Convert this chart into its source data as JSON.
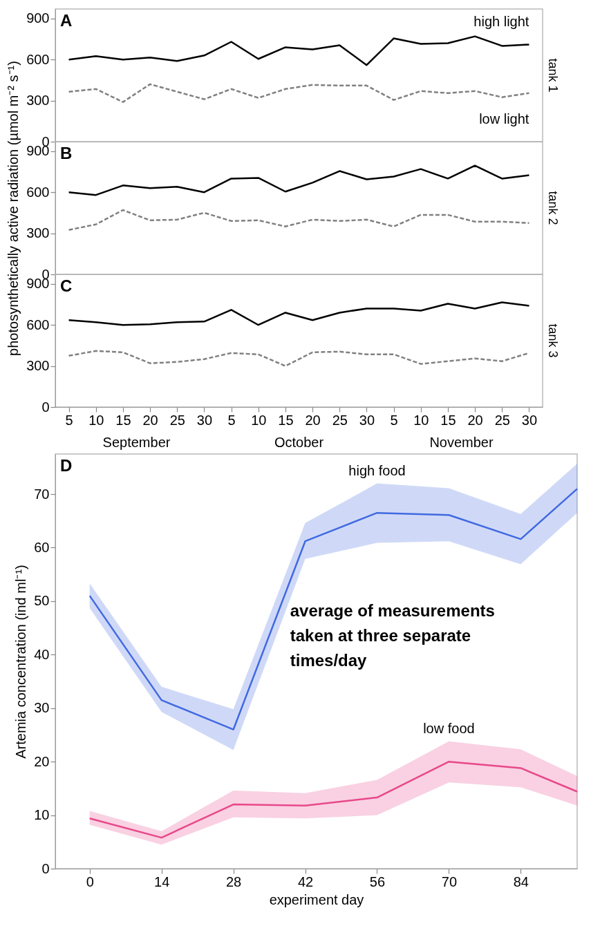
{
  "chart_data": [
    {
      "type": "line",
      "title": "A",
      "categories": [
        "5",
        "10",
        "15",
        "20",
        "25",
        "30",
        "5",
        "10",
        "15",
        "20",
        "25",
        "30",
        "5",
        "10",
        "15",
        "20",
        "25",
        "30"
      ],
      "ylim": [
        0,
        970
      ],
      "yticks": [
        0,
        300,
        600,
        900
      ],
      "tick_labels": "y",
      "annotations": [
        "tank 1"
      ],
      "series": [
        {
          "name": "high light",
          "color": "#000000",
          "line_style": "solid",
          "values": [
            600,
            625,
            600,
            615,
            590,
            630,
            730,
            605,
            690,
            675,
            705,
            560,
            755,
            715,
            720,
            770,
            700,
            710
          ]
        },
        {
          "name": "low light",
          "color": "#808080",
          "line_style": "dashed",
          "values": [
            365,
            385,
            290,
            420,
            365,
            310,
            385,
            320,
            385,
            415,
            410,
            410,
            305,
            370,
            355,
            370,
            325,
            355
          ]
        }
      ]
    },
    {
      "type": "line",
      "title": "B",
      "ylabel": "photosynthetically active radiation (µmol m⁻² s⁻¹)",
      "categories": [
        "5",
        "10",
        "15",
        "20",
        "25",
        "30",
        "5",
        "10",
        "15",
        "20",
        "25",
        "30",
        "5",
        "10",
        "15",
        "20",
        "25",
        "30"
      ],
      "ylim": [
        0,
        970
      ],
      "yticks": [
        0,
        300,
        600,
        900
      ],
      "tick_labels": "y",
      "annotations": [
        "tank 2"
      ],
      "series": [
        {
          "color": "#000000",
          "line_style": "solid",
          "values": [
            600,
            580,
            650,
            630,
            640,
            600,
            700,
            705,
            605,
            670,
            755,
            695,
            715,
            770,
            700,
            795,
            700,
            725
          ]
        },
        {
          "color": "#808080",
          "line_style": "dashed",
          "values": [
            325,
            365,
            470,
            395,
            400,
            450,
            390,
            395,
            350,
            400,
            390,
            400,
            350,
            435,
            435,
            385,
            385,
            375
          ]
        }
      ]
    },
    {
      "type": "line",
      "title": "C",
      "categories": [
        "5",
        "10",
        "15",
        "20",
        "25",
        "30",
        "5",
        "10",
        "15",
        "20",
        "25",
        "30",
        "5",
        "10",
        "15",
        "20",
        "25",
        "30"
      ],
      "ylim": [
        0,
        970
      ],
      "yticks": [
        0,
        300,
        600,
        900
      ],
      "annotations": [
        "tank 3",
        "September",
        "October",
        "November"
      ],
      "series": [
        {
          "color": "#000000",
          "line_style": "solid",
          "values": [
            635,
            620,
            600,
            605,
            620,
            625,
            710,
            600,
            690,
            635,
            690,
            720,
            720,
            705,
            755,
            720,
            765,
            740
          ]
        },
        {
          "color": "#808080",
          "line_style": "dashed",
          "values": [
            375,
            410,
            400,
            320,
            330,
            350,
            395,
            385,
            300,
            400,
            405,
            385,
            385,
            315,
            335,
            355,
            335,
            395
          ]
        }
      ]
    },
    {
      "type": "line",
      "title": "D",
      "xlabel": "experiment day",
      "ylabel": "Artemia concentration (ind ml⁻¹)",
      "x": [
        0,
        14,
        28,
        42,
        56,
        70,
        84,
        95
      ],
      "xlim": [
        -6.7,
        95
      ],
      "xticks": [
        0,
        14,
        28,
        42,
        56,
        70,
        84
      ],
      "ylim": [
        0,
        77.5
      ],
      "yticks": [
        0,
        10,
        20,
        30,
        40,
        50,
        60,
        70
      ],
      "annotations": [
        "average of measurements taken at three separate times/day"
      ],
      "series": [
        {
          "name": "high food",
          "color": "#4169e1",
          "line_style": "solid",
          "values": [
            51,
            31.5,
            26,
            61.2,
            66.5,
            66.1,
            61.6,
            71
          ],
          "lower": [
            48.7,
            29.3,
            22.2,
            57.9,
            60.9,
            61.2,
            56.9,
            66.5
          ],
          "upper": [
            53.3,
            34,
            29.8,
            64.6,
            72,
            71.1,
            66.3,
            75.7
          ]
        },
        {
          "name": "low food",
          "color": "#e8488a",
          "line_style": "solid",
          "values": [
            9.4,
            5.8,
            12,
            11.8,
            13.3,
            20,
            18.8,
            14.4
          ],
          "lower": [
            8.2,
            4.5,
            9.6,
            9.4,
            10,
            16.1,
            15.2,
            11.8
          ],
          "upper": [
            10.8,
            7,
            14.6,
            14.1,
            16.6,
            23.8,
            22.3,
            17.3
          ]
        }
      ]
    }
  ]
}
